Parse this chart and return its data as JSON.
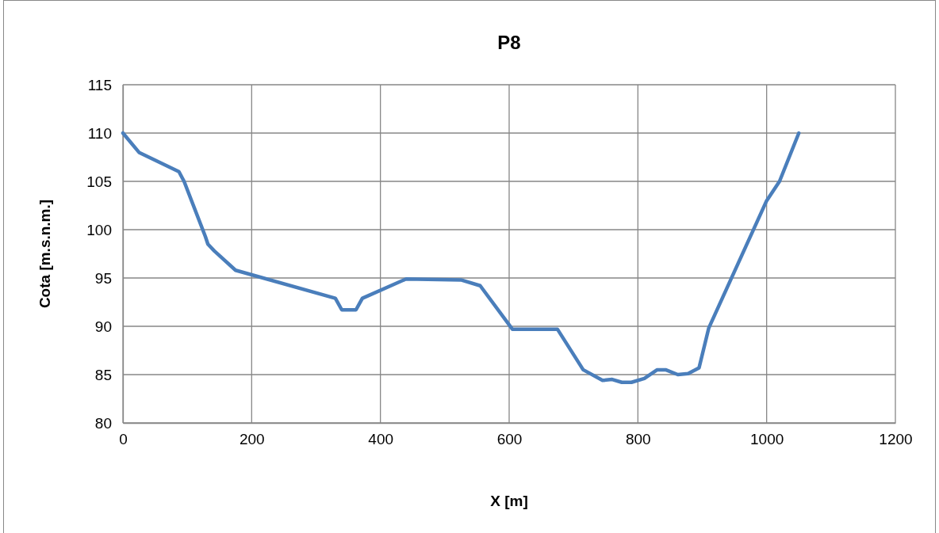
{
  "chart_data": {
    "type": "line",
    "title": "P8",
    "xlabel": "X [m]",
    "ylabel": "Cota [m.s.n.m.]",
    "x": [
      0,
      25,
      87,
      95,
      128,
      132,
      142,
      175,
      330,
      340,
      362,
      372,
      440,
      525,
      555,
      605,
      675,
      715,
      745,
      760,
      775,
      790,
      810,
      830,
      843,
      862,
      878,
      895,
      910,
      1000,
      1020,
      1050
    ],
    "series": [
      {
        "color": "#4a7ebb",
        "values": [
          110,
          108,
          106,
          105,
          99.3,
          98.5,
          97.8,
          95.8,
          92.9,
          91.7,
          91.7,
          92.9,
          94.9,
          94.8,
          94.2,
          89.7,
          89.7,
          85.5,
          84.4,
          84.5,
          84.2,
          84.2,
          84.6,
          85.5,
          85.5,
          85.0,
          85.1,
          85.7,
          89.8,
          103,
          105,
          110
        ]
      }
    ],
    "xlim": [
      0,
      1200
    ],
    "xticks": [
      0,
      200,
      400,
      600,
      800,
      1000,
      1200
    ],
    "ylim": [
      80,
      115
    ],
    "yticks": [
      80,
      85,
      90,
      95,
      100,
      105,
      110,
      115
    ],
    "grid": true,
    "marker": "none",
    "line_style": "solid"
  }
}
